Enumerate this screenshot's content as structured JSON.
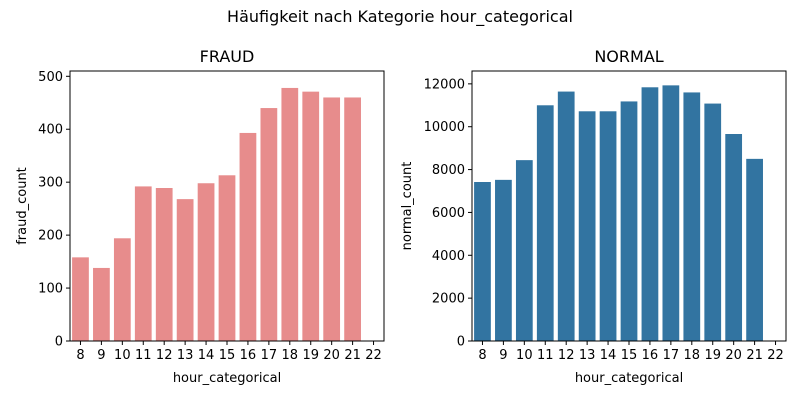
{
  "figure": {
    "suptitle": "Häufigkeit nach Kategorie hour_categorical"
  },
  "chart_data": [
    {
      "type": "bar",
      "title": "FRAUD",
      "xlabel": "hour_categorical",
      "ylabel": "fraud_count",
      "categories": [
        "8",
        "9",
        "10",
        "11",
        "12",
        "13",
        "14",
        "15",
        "16",
        "17",
        "18",
        "19",
        "20",
        "21",
        "22"
      ],
      "values": [
        158,
        138,
        194,
        292,
        289,
        268,
        298,
        313,
        393,
        440,
        478,
        471,
        460,
        460,
        null
      ],
      "ylim": [
        0,
        510
      ],
      "yticks": [
        0,
        100,
        200,
        300,
        400,
        500
      ],
      "color": "#e78c8c",
      "grid": false
    },
    {
      "type": "bar",
      "title": "NORMAL",
      "xlabel": "hour_categorical",
      "ylabel": "normal_count",
      "categories": [
        "8",
        "9",
        "10",
        "11",
        "12",
        "13",
        "14",
        "15",
        "16",
        "17",
        "18",
        "19",
        "20",
        "21",
        "22"
      ],
      "values": [
        7420,
        7520,
        8440,
        11000,
        11640,
        10720,
        10720,
        11180,
        11840,
        11930,
        11600,
        11080,
        9660,
        8500,
        null
      ],
      "ylim": [
        0,
        12600
      ],
      "yticks": [
        0,
        2000,
        4000,
        6000,
        8000,
        10000,
        12000
      ],
      "color": "#3274a1",
      "grid": false
    }
  ]
}
